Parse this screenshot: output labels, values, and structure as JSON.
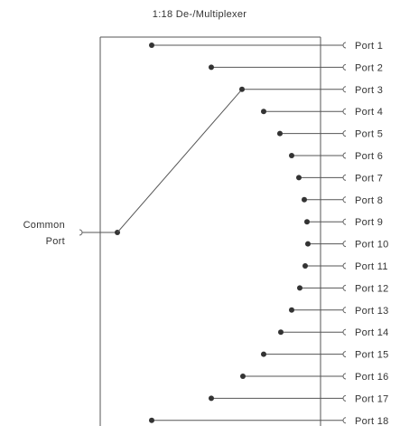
{
  "title": "1:18 De-/Multiplexer",
  "common_port": {
    "line1": "Common",
    "line2": "Port"
  },
  "ports": [
    "Port 1",
    "Port 2",
    "Port 3",
    "Port 4",
    "Port 5",
    "Port 6",
    "Port 7",
    "Port 8",
    "Port 9",
    "Port 10",
    "Port 11",
    "Port 12",
    "Port 13",
    "Port 14",
    "Port 15",
    "Port 16",
    "Port 17",
    "Port 18"
  ],
  "selected_port": "Port 3",
  "colors": {
    "line": "#555555",
    "dot": "#333333",
    "text": "#333333"
  }
}
